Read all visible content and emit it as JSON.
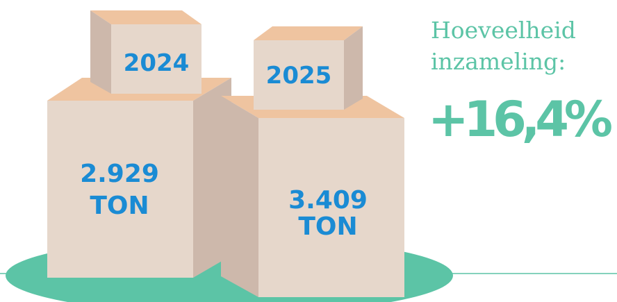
{
  "heading": {
    "lines": [
      "Hoeveelheid",
      "inzameling:"
    ],
    "change": "+16,4%"
  },
  "boxes": [
    {
      "year": "2024",
      "amount": "2.929",
      "unit": "TON"
    },
    {
      "year": "2025",
      "amount": "3.409",
      "unit": "TON"
    }
  ]
}
